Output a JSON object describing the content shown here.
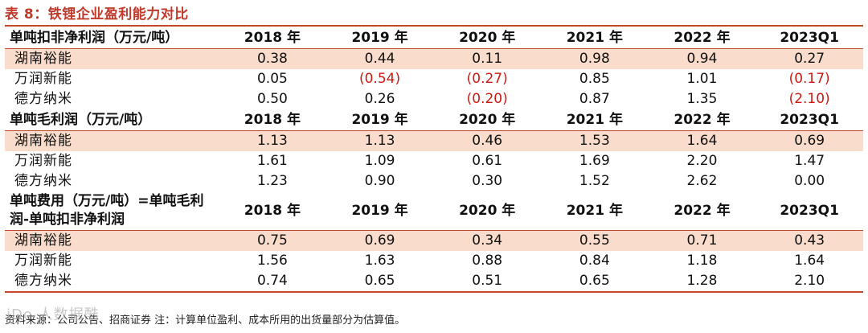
{
  "title": "表 8：铁锂企业盈利能力对比",
  "columns": [
    "2018 年",
    "2019 年",
    "2020 年",
    "2021 年",
    "2022 年",
    "2023Q1"
  ],
  "sections": [
    {
      "header": "单吨扣非净利润（万元/吨）",
      "rows": [
        {
          "company": "湖南裕能",
          "values": [
            "0.38",
            "0.44",
            "0.11",
            "0.98",
            "0.94",
            "0.27"
          ]
        },
        {
          "company": "万润新能",
          "values": [
            "0.05",
            "(0.54)",
            "(0.27)",
            "0.85",
            "1.01",
            "(0.17)"
          ]
        },
        {
          "company": "德方纳米",
          "values": [
            "0.50",
            "0.26",
            "(0.20)",
            "0.87",
            "1.35",
            "(2.10)"
          ]
        }
      ]
    },
    {
      "header": "单吨毛利润（万元/吨）",
      "rows": [
        {
          "company": "湖南裕能",
          "values": [
            "1.13",
            "1.13",
            "0.46",
            "1.53",
            "1.64",
            "0.69"
          ]
        },
        {
          "company": "万润新能",
          "values": [
            "1.61",
            "1.09",
            "0.61",
            "1.69",
            "2.20",
            "1.47"
          ]
        },
        {
          "company": "德方纳米",
          "values": [
            "1.23",
            "0.90",
            "0.30",
            "1.52",
            "2.62",
            "0.00"
          ]
        }
      ]
    },
    {
      "header": "单吨费用（万元/吨）=单吨毛利润-单吨扣非净利润",
      "rows": [
        {
          "company": "湖南裕能",
          "values": [
            "0.75",
            "0.69",
            "0.34",
            "0.55",
            "0.71",
            "0.43"
          ]
        },
        {
          "company": "万润新能",
          "values": [
            "1.56",
            "1.63",
            "0.88",
            "0.84",
            "1.18",
            "1.64"
          ]
        },
        {
          "company": "德方纳米",
          "values": [
            "0.74",
            "0.65",
            "0.51",
            "0.65",
            "1.28",
            "2.10"
          ]
        }
      ]
    }
  ],
  "source": "资料来源：公司公告、招商证券 注：计算单位盈利、成本所用的出货量部分为估算值。",
  "watermark": "iDo 人数据酷"
}
